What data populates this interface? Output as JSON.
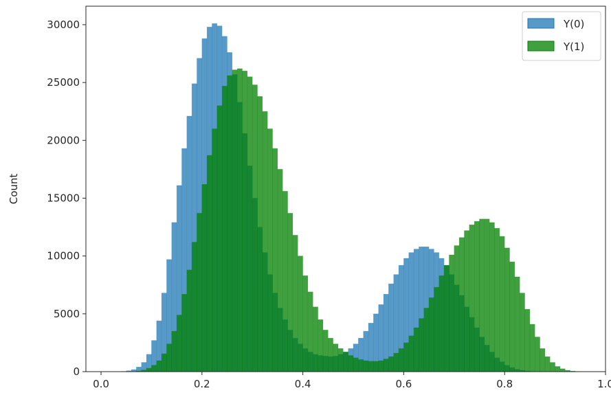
{
  "chart_data": {
    "type": "bar",
    "subtype": "histogram",
    "title": "",
    "xlabel": "",
    "ylabel": "Count",
    "xlim": [
      -0.03,
      1.0
    ],
    "ylim": [
      0,
      31600
    ],
    "xticks": [
      0.0,
      0.2,
      0.4,
      0.6,
      0.8,
      1.0
    ],
    "xtick_labels": [
      "0.0",
      "0.2",
      "0.4",
      "0.6",
      "0.8",
      "1.0"
    ],
    "yticks": [
      0,
      5000,
      10000,
      15000,
      20000,
      25000,
      30000
    ],
    "ytick_labels": [
      "0",
      "5000",
      "10000",
      "15000",
      "20000",
      "25000",
      "30000"
    ],
    "bin_range": [
      0.0,
      1.0
    ],
    "bin_count": 100,
    "grid": false,
    "legend_position": "top-right",
    "series": [
      {
        "name": "Y(0)",
        "color": "#1f77b4",
        "opacity": 0.75,
        "values": [
          0,
          0,
          5,
          10,
          30,
          80,
          180,
          400,
          800,
          1500,
          2700,
          4400,
          6800,
          9700,
          12900,
          16100,
          19300,
          22100,
          24900,
          27100,
          28800,
          29800,
          30100,
          29900,
          29000,
          27600,
          25700,
          23300,
          20600,
          17800,
          15000,
          12500,
          10300,
          8400,
          6800,
          5500,
          4500,
          3600,
          2900,
          2400,
          2000,
          1700,
          1500,
          1400,
          1350,
          1300,
          1350,
          1500,
          1700,
          2000,
          2400,
          2900,
          3500,
          4200,
          5000,
          5800,
          6700,
          7600,
          8400,
          9200,
          9800,
          10300,
          10600,
          10800,
          10800,
          10600,
          10300,
          9800,
          9200,
          8400,
          7500,
          6600,
          5600,
          4700,
          3800,
          3000,
          2300,
          1700,
          1200,
          850,
          550,
          350,
          200,
          120,
          60,
          30,
          15,
          5,
          0,
          0,
          0,
          0,
          0,
          0,
          0,
          0,
          0,
          0,
          0,
          0
        ]
      },
      {
        "name": "Y(1)",
        "color": "#008000",
        "opacity": 0.75,
        "values": [
          0,
          0,
          0,
          0,
          0,
          5,
          20,
          60,
          140,
          300,
          560,
          950,
          1550,
          2400,
          3500,
          4900,
          6700,
          8800,
          11200,
          13700,
          16200,
          18700,
          21000,
          23000,
          24700,
          25600,
          26100,
          26200,
          26000,
          25500,
          24800,
          23800,
          22500,
          21000,
          19300,
          17500,
          15600,
          13700,
          11800,
          10000,
          8300,
          6900,
          5600,
          4500,
          3600,
          2900,
          2400,
          2000,
          1700,
          1400,
          1200,
          1050,
          950,
          900,
          900,
          950,
          1100,
          1300,
          1600,
          2000,
          2500,
          3100,
          3800,
          4600,
          5500,
          6400,
          7300,
          8300,
          9200,
          10100,
          10900,
          11600,
          12200,
          12700,
          13000,
          13200,
          13200,
          12900,
          12400,
          11700,
          10700,
          9500,
          8200,
          6800,
          5400,
          4100,
          3000,
          2000,
          1300,
          800,
          450,
          250,
          120,
          50,
          20,
          5,
          0,
          0,
          0,
          0
        ]
      }
    ]
  }
}
